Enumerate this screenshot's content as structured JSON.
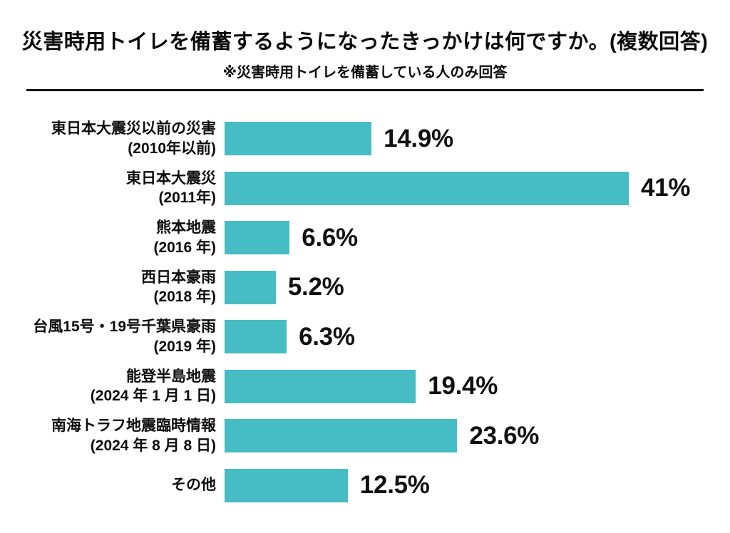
{
  "header": {
    "title": "災害時用トイレを備蓄するようになったきっかけは何ですか。(複数回答)",
    "subtitle": "※災害時用トイレを備蓄している人のみ回答"
  },
  "chart_data": {
    "type": "bar",
    "orientation": "horizontal",
    "title": "災害時用トイレを備蓄するようになったきっかけは何ですか。(複数回答)",
    "subtitle": "※災害時用トイレを備蓄している人のみ回答",
    "bar_color": "#46BCC4",
    "text_color": "#0d0d0d",
    "xlim": [
      0,
      41
    ],
    "grid": false,
    "legend": "none",
    "categories": [
      "東日本大震災以前の災害 (2010年以前)",
      "東日本大震災 (2011年)",
      "熊本地震 (2016 年)",
      "西日本豪雨 (2018 年)",
      "台風15号・19号千葉県豪雨 (2019 年)",
      "能登半島地震 (2024 年 1 月 1 日)",
      "南海トラフ地震臨時情報 (2024 年 8 月 8 日)",
      "その他"
    ],
    "values": [
      14.9,
      41,
      6.6,
      5.2,
      6.3,
      19.4,
      23.6,
      12.5
    ],
    "rows": [
      {
        "label_lines": [
          "東日本大震災以前の災害",
          "(2010年以前)"
        ],
        "value": 14.9,
        "value_label": "14.9%"
      },
      {
        "label_lines": [
          "東日本大震災",
          "(2011年)"
        ],
        "value": 41,
        "value_label": "41%"
      },
      {
        "label_lines": [
          "熊本地震",
          "(2016 年)"
        ],
        "value": 6.6,
        "value_label": "6.6%"
      },
      {
        "label_lines": [
          "西日本豪雨",
          "(2018 年)"
        ],
        "value": 5.2,
        "value_label": "5.2%"
      },
      {
        "label_lines": [
          "台風15号・19号千葉県豪雨",
          "(2019 年)"
        ],
        "value": 6.3,
        "value_label": "6.3%"
      },
      {
        "label_lines": [
          "能登半島地震",
          "(2024 年 1 月 1 日)"
        ],
        "value": 19.4,
        "value_label": "19.4%"
      },
      {
        "label_lines": [
          "南海トラフ地震臨時情報",
          "(2024 年 8 月 8 日)"
        ],
        "value": 23.6,
        "value_label": "23.6%"
      },
      {
        "label_lines": [
          "その他"
        ],
        "value": 12.5,
        "value_label": "12.5%"
      }
    ]
  }
}
